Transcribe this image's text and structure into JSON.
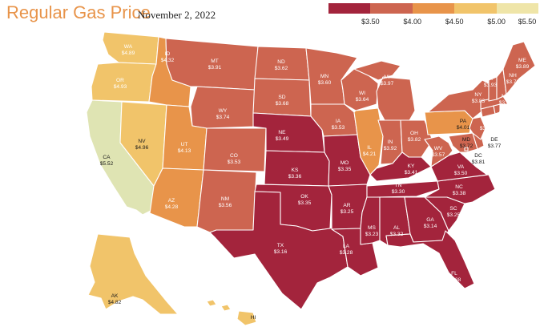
{
  "title": "Regular Gas Price",
  "date": "November 2, 2022",
  "legend": {
    "colors": [
      "#a3243c",
      "#cd6550",
      "#e8944a",
      "#f1c46a",
      "#efe5a8"
    ],
    "labels": [
      "$3.50",
      "$4.00",
      "$4.50",
      "$5.00",
      "$5.50"
    ]
  },
  "states": [
    {
      "abbr": "WA",
      "price": "$4.89",
      "color": "#f1c46a"
    },
    {
      "abbr": "OR",
      "price": "$4.93",
      "color": "#f1c46a"
    },
    {
      "abbr": "CA",
      "price": "$5.52",
      "color": "#dfe4b3"
    },
    {
      "abbr": "NV",
      "price": "$4.96",
      "color": "#f1c46a"
    },
    {
      "abbr": "ID",
      "price": "$4.32",
      "color": "#e8944a"
    },
    {
      "abbr": "MT",
      "price": "$3.91",
      "color": "#cd6550"
    },
    {
      "abbr": "WY",
      "price": "$3.74",
      "color": "#cd6550"
    },
    {
      "abbr": "UT",
      "price": "$4.13",
      "color": "#e8944a"
    },
    {
      "abbr": "AZ",
      "price": "$4.28",
      "color": "#e8944a"
    },
    {
      "abbr": "CO",
      "price": "$3.53",
      "color": "#cd6550"
    },
    {
      "abbr": "NM",
      "price": "$3.56",
      "color": "#cd6550"
    },
    {
      "abbr": "ND",
      "price": "$3.62",
      "color": "#cd6550"
    },
    {
      "abbr": "SD",
      "price": "$3.68",
      "color": "#cd6550"
    },
    {
      "abbr": "NE",
      "price": "$3.49",
      "color": "#a3243c"
    },
    {
      "abbr": "KS",
      "price": "$3.36",
      "color": "#a3243c"
    },
    {
      "abbr": "OK",
      "price": "$3.35",
      "color": "#a3243c"
    },
    {
      "abbr": "TX",
      "price": "$3.16",
      "color": "#a3243c"
    },
    {
      "abbr": "MN",
      "price": "$3.60",
      "color": "#cd6550"
    },
    {
      "abbr": "IA",
      "price": "$3.53",
      "color": "#cd6550"
    },
    {
      "abbr": "MO",
      "price": "$3.35",
      "color": "#a3243c"
    },
    {
      "abbr": "AR",
      "price": "$3.25",
      "color": "#a3243c"
    },
    {
      "abbr": "LA",
      "price": "$3.28",
      "color": "#a3243c"
    },
    {
      "abbr": "WI",
      "price": "$3.64",
      "color": "#cd6550"
    },
    {
      "abbr": "IL",
      "price": "$4.21",
      "color": "#e8944a"
    },
    {
      "abbr": "MI",
      "price": "$3.97",
      "color": "#cd6550"
    },
    {
      "abbr": "IN",
      "price": "$3.92",
      "color": "#cd6550"
    },
    {
      "abbr": "OH",
      "price": "$3.82",
      "color": "#cd6550"
    },
    {
      "abbr": "KY",
      "price": "$3.41",
      "color": "#a3243c"
    },
    {
      "abbr": "TN",
      "price": "$3.30",
      "color": "#a3243c"
    },
    {
      "abbr": "MS",
      "price": "$3.23",
      "color": "#a3243c"
    },
    {
      "abbr": "AL",
      "price": "$3.32",
      "color": "#a3243c"
    },
    {
      "abbr": "GA",
      "price": "$3.14",
      "color": "#a3243c"
    },
    {
      "abbr": "FL",
      "price": "$3.38",
      "color": "#a3243c"
    },
    {
      "abbr": "SC",
      "price": "$3.25",
      "color": "#a3243c"
    },
    {
      "abbr": "NC",
      "price": "$3.38",
      "color": "#a3243c"
    },
    {
      "abbr": "VA",
      "price": "$3.50",
      "color": "#a3243c"
    },
    {
      "abbr": "WV",
      "price": "$3.57",
      "color": "#cd6550"
    },
    {
      "abbr": "PA",
      "price": "$4.01",
      "color": "#e8944a"
    },
    {
      "abbr": "NY",
      "price": "$3.83",
      "color": "#cd6550"
    },
    {
      "abbr": "MD",
      "price": "$3.72",
      "color": "#cd6550"
    },
    {
      "abbr": "DE",
      "price": "$3.77",
      "color": "#cd6550"
    },
    {
      "abbr": "NJ",
      "price": "$3.85",
      "color": "#cd6550"
    },
    {
      "abbr": "CT",
      "price": "$3.71",
      "color": "#cd6550"
    },
    {
      "abbr": "RI",
      "price": "$3.80",
      "color": "#cd6550"
    },
    {
      "abbr": "MA",
      "price": "$3.78",
      "color": "#cd6550"
    },
    {
      "abbr": "VT",
      "price": "$3.93",
      "color": "#cd6550"
    },
    {
      "abbr": "NH",
      "price": "$3.72",
      "color": "#cd6550"
    },
    {
      "abbr": "ME",
      "price": "$3.89",
      "color": "#cd6550"
    },
    {
      "abbr": "DC",
      "price": "$3.81",
      "color": "#cd6550"
    },
    {
      "abbr": "AK",
      "price": "$4.82",
      "color": "#f1c46a"
    },
    {
      "abbr": "HI",
      "price": "",
      "color": "#f1c46a"
    }
  ]
}
